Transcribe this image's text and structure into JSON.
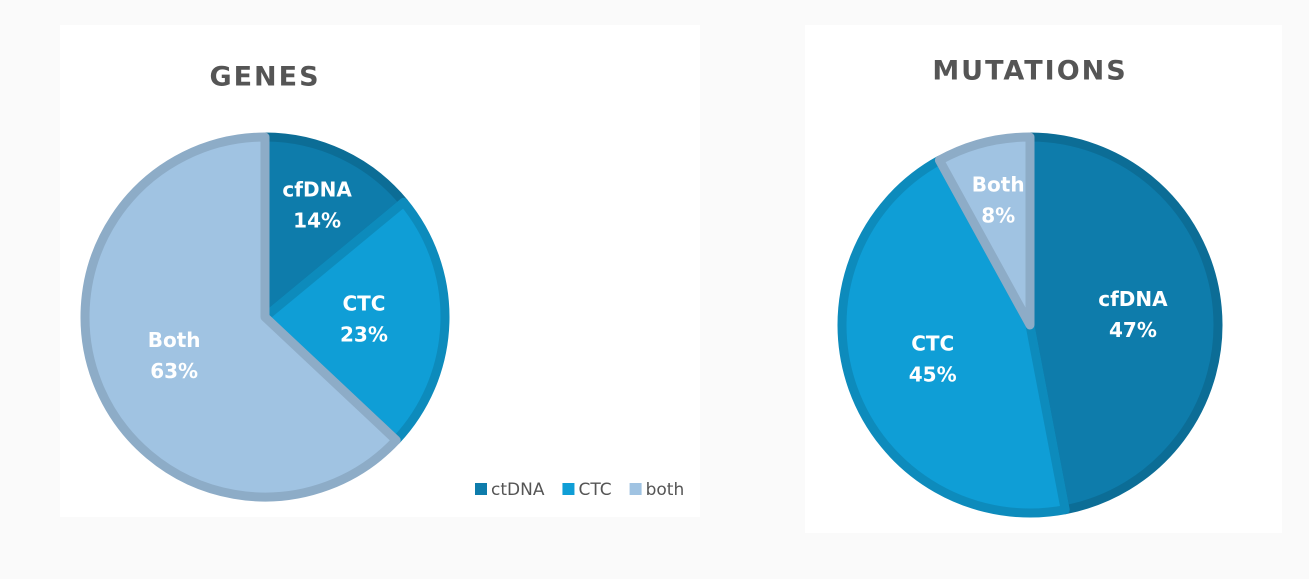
{
  "chart_data": [
    {
      "type": "pie",
      "title": "GENES",
      "categories": [
        "cfDNA",
        "CTC",
        "Both"
      ],
      "values": [
        14,
        23,
        63
      ],
      "value_labels": [
        "14%",
        "23%",
        "63%"
      ],
      "colors": [
        "#0e7cab",
        "#0f9ed6",
        "#a0c3e2"
      ],
      "legend": [
        "ctDNA",
        "CTC",
        "both"
      ]
    },
    {
      "type": "pie",
      "title": "MUTATIONS",
      "categories": [
        "cfDNA",
        "CTC",
        "Both"
      ],
      "values": [
        47,
        45,
        8
      ],
      "value_labels": [
        "47%",
        "45%",
        "8%"
      ],
      "colors": [
        "#0e7cab",
        "#0f9ed6",
        "#a0c3e2"
      ]
    }
  ]
}
